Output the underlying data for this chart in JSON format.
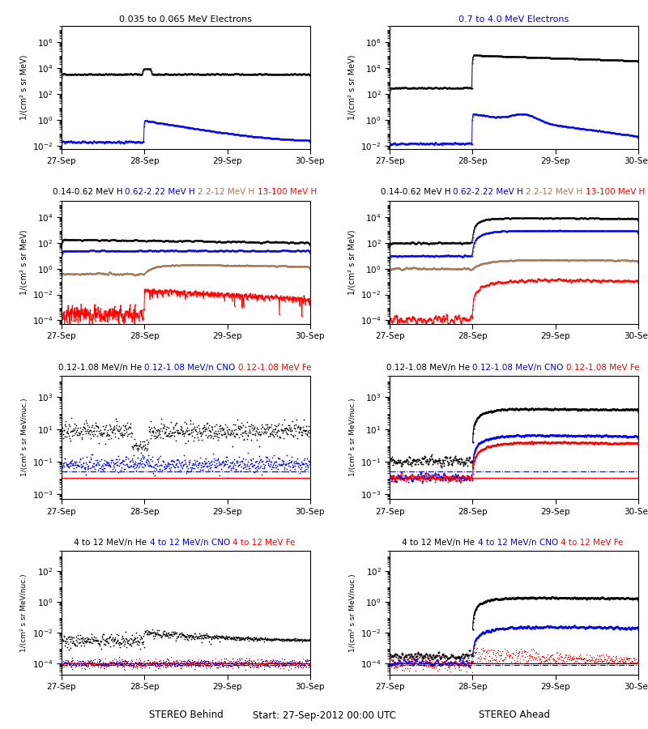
{
  "titles_row1_left": [
    "0.035 to 0.065 MeV Electrons",
    "#000000"
  ],
  "titles_row1_right": [
    "0.7 to 4.0 MeV Electrons",
    "#0000EE"
  ],
  "titles_row2": [
    [
      "0.14-0.62 MeV H",
      "#000000"
    ],
    [
      "0.62-2.22 MeV H",
      "#0000EE"
    ],
    [
      "2.2-12 MeV H",
      "#A0785A"
    ],
    [
      "13-100 MeV H",
      "#FF0000"
    ]
  ],
  "titles_row3": [
    [
      "0.12-1.08 MeV/n He",
      "#000000"
    ],
    [
      "0.12-1.08 MeV/n CNO",
      "#0000EE"
    ],
    [
      "0.12-1.08 MeV Fe",
      "#FF0000"
    ]
  ],
  "titles_row4": [
    [
      "4 to 12 MeV/n He",
      "#000000"
    ],
    [
      "4 to 12 MeV/n CNO",
      "#0000EE"
    ],
    [
      "4 to 12 MeV Fe",
      "#FF0000"
    ]
  ],
  "xlabel_left": "STEREO Behind",
  "xlabel_center": "Start: 27-Sep-2012 00:00 UTC",
  "xlabel_right": "STEREO Ahead",
  "ylabel_e": "1/(cm² s sr MeV)",
  "ylabel_H": "1/(cm² s sr MeV)",
  "ylabel_nuc": "1/(cm² s sr MeV/nuc.)",
  "xtick_labels": [
    "27-Sep",
    "28-Sep",
    "29-Sep",
    "30-Sep"
  ],
  "colors": {
    "black": "#000000",
    "blue": "#0000EE",
    "brown": "#A0785A",
    "red": "#FF0000"
  },
  "seed": 42
}
